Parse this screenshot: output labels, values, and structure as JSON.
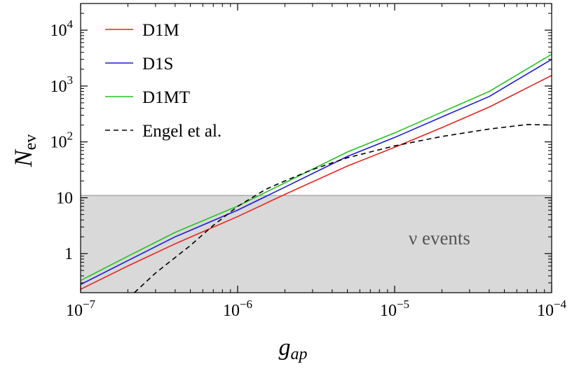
{
  "chart_data": {
    "type": "line",
    "xlabel": "g",
    "xlabel_sub": "ap",
    "ylabel": "N",
    "ylabel_sub": "ev",
    "xscale": "log",
    "yscale": "log",
    "xlim": [
      1e-07,
      0.0001
    ],
    "ylim": [
      0.2,
      30000
    ],
    "x_ticks": [
      {
        "value": 1e-07,
        "base": "10",
        "exp": "−7"
      },
      {
        "value": 1e-06,
        "base": "10",
        "exp": "−6"
      },
      {
        "value": 1e-05,
        "base": "10",
        "exp": "−5"
      },
      {
        "value": 0.0001,
        "base": "10",
        "exp": "−4"
      }
    ],
    "y_ticks": [
      {
        "value": 1,
        "base": "1",
        "exp": ""
      },
      {
        "value": 10,
        "base": "10",
        "exp": ""
      },
      {
        "value": 100,
        "base": "10",
        "exp": "2"
      },
      {
        "value": 1000,
        "base": "10",
        "exp": "3"
      },
      {
        "value": 10000,
        "base": "10",
        "exp": "4"
      }
    ],
    "shaded_region": {
      "y_max": 11,
      "label": "ν events",
      "color": "#d9d9d9"
    },
    "legend_position": "top-left",
    "grid": false,
    "series": [
      {
        "name": "D1M",
        "color": "#e8231f",
        "dash": "solid",
        "x": [
          1e-07,
          2e-07,
          4e-07,
          1e-06,
          2e-06,
          5e-06,
          1e-05,
          2e-05,
          4e-05,
          0.0001
        ],
        "y": [
          0.23,
          0.6,
          1.5,
          4.6,
          11.5,
          37,
          80,
          180,
          420,
          1550
        ]
      },
      {
        "name": "D1S",
        "color": "#1b1bd6",
        "dash": "solid",
        "x": [
          1e-07,
          2e-07,
          4e-07,
          1e-06,
          2e-06,
          5e-06,
          1e-05,
          2e-05,
          4e-05,
          0.0001
        ],
        "y": [
          0.28,
          0.75,
          2.0,
          6.0,
          15.5,
          55,
          120,
          280,
          650,
          3000
        ]
      },
      {
        "name": "D1MT",
        "color": "#22c41f",
        "dash": "solid",
        "x": [
          1e-07,
          2e-07,
          4e-07,
          1e-06,
          2e-06,
          5e-06,
          1e-05,
          2e-05,
          4e-05,
          0.0001
        ],
        "y": [
          0.33,
          0.9,
          2.4,
          7.1,
          18.5,
          66,
          145,
          340,
          800,
          3700
        ]
      },
      {
        "name": "Engel et al.",
        "color": "#000000",
        "dash": "dashed",
        "x": [
          2.2e-07,
          3e-07,
          5e-07,
          7e-07,
          1e-06,
          1.5e-06,
          2e-06,
          3e-06,
          5e-06,
          1e-05,
          2e-05,
          4e-05,
          7e-05,
          0.0001
        ],
        "y": [
          0.2,
          0.45,
          1.4,
          3.2,
          7.0,
          14,
          20,
          32,
          52,
          85,
          125,
          170,
          205,
          200
        ]
      }
    ]
  }
}
